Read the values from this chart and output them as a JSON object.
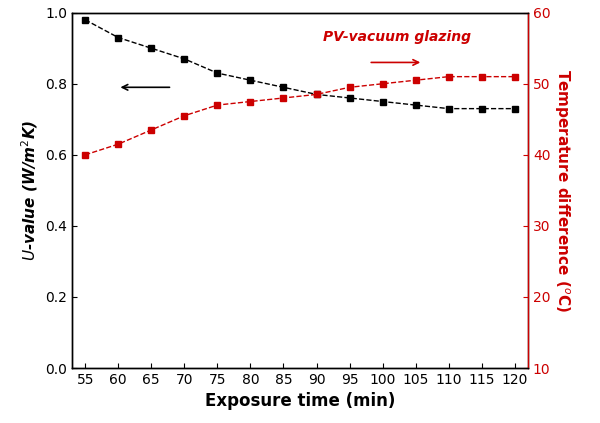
{
  "x": [
    55,
    60,
    65,
    70,
    75,
    80,
    85,
    90,
    95,
    100,
    105,
    110,
    115,
    120
  ],
  "u_value": [
    0.98,
    0.93,
    0.9,
    0.87,
    0.83,
    0.81,
    0.79,
    0.77,
    0.76,
    0.75,
    0.74,
    0.73,
    0.73,
    0.73
  ],
  "temp_diff": [
    40.0,
    41.5,
    43.5,
    45.5,
    47.0,
    47.5,
    48.0,
    48.5,
    49.5,
    50.0,
    50.5,
    51.0,
    51.0,
    51.0
  ],
  "u_color": "#000000",
  "temp_color": "#cc0000",
  "xlabel": "Exposure time (min)",
  "annotation": "PV-vacuum glazing",
  "xlim": [
    53,
    122
  ],
  "ylim_left": [
    0.0,
    1.0
  ],
  "ylim_right": [
    10,
    60
  ],
  "xticks": [
    55,
    60,
    65,
    70,
    75,
    80,
    85,
    90,
    95,
    100,
    105,
    110,
    115,
    120
  ],
  "yticks_left": [
    0.0,
    0.2,
    0.4,
    0.6,
    0.8,
    1.0
  ],
  "yticks_right": [
    10,
    20,
    30,
    40,
    50,
    60
  ]
}
